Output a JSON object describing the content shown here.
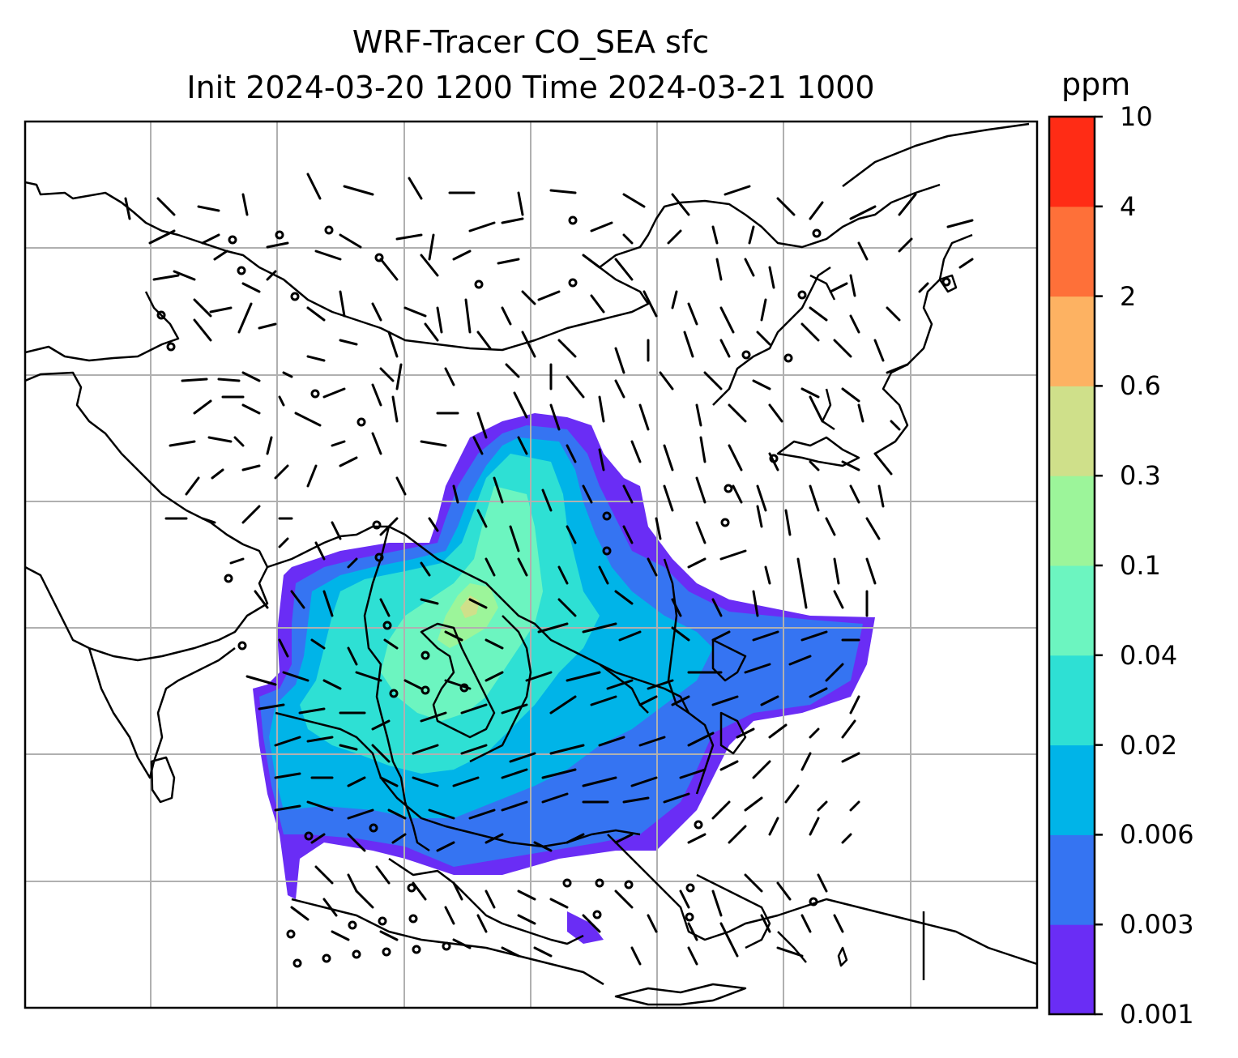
{
  "title": {
    "line1": "WRF-Tracer CO_SEA sfc",
    "line2": "Init 2024-03-20 1200 Time 2024-03-21 1000"
  },
  "colorbar": {
    "units": "ppm",
    "levels": [
      "0.001",
      "0.003",
      "0.006",
      "0.02",
      "0.04",
      "0.1",
      "0.3",
      "0.6",
      "2",
      "4",
      "10"
    ],
    "colors": [
      "#6a2df5",
      "#3574f2",
      "#00b4e8",
      "#2ee0d4",
      "#6cf5c0",
      "#9cf59a",
      "#cfe08a",
      "#fdb262",
      "#fe7039",
      "#ff2c15"
    ]
  },
  "map": {
    "gridline_color": "#b0b0b0",
    "coastline_color": "#000000",
    "barb_color": "#000000"
  }
}
